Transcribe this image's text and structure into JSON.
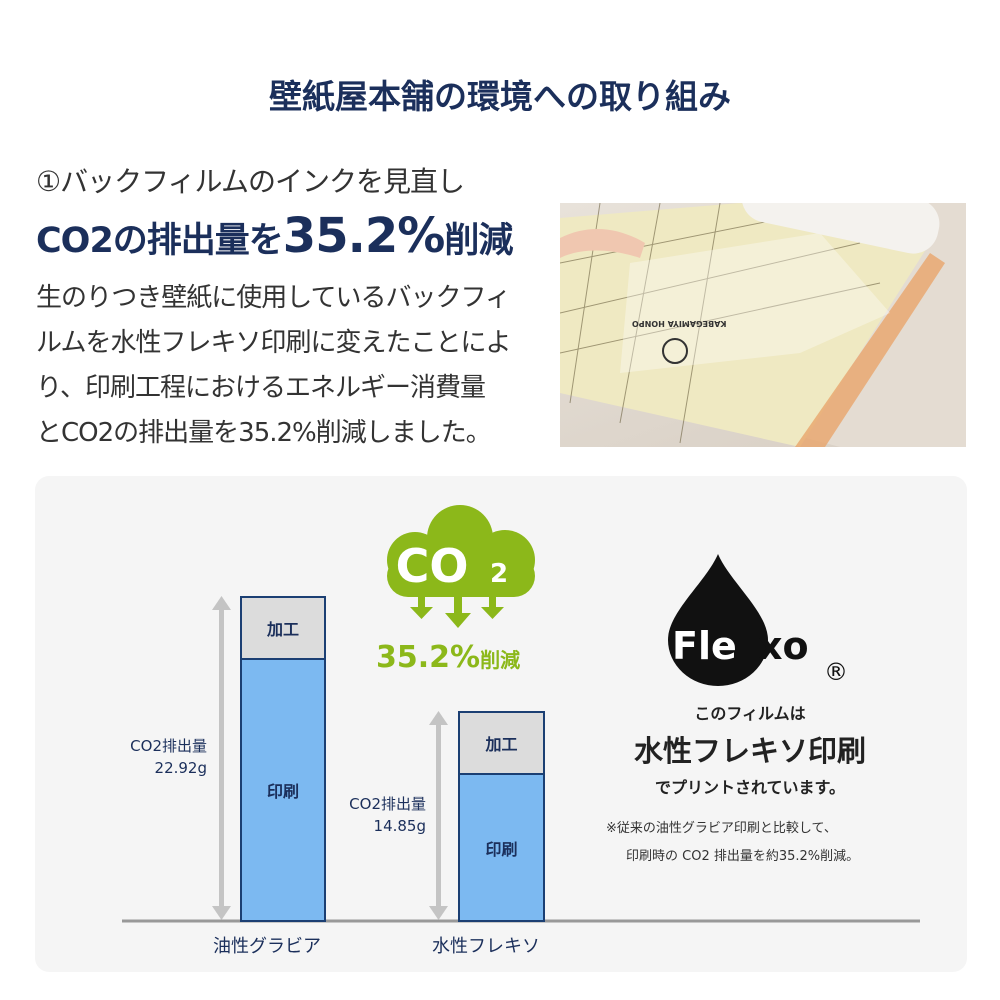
{
  "title": "壁紙屋本舗の環境への取り組み",
  "subtitle": "①バックフィルムのインクを見直し",
  "headline": {
    "pre": "CO2の排出量を",
    "highlight": "35.2%",
    "post": "削減"
  },
  "description": [
    "生のりつき壁紙に使用しているバックフィ",
    "ルムを水性フレキソ印刷に変えたことによ",
    "り、印刷工程におけるエネルギー消費量",
    "とCO2の排出量を35.2%削減しました。"
  ],
  "photo": {
    "logo_text": "KABEGAMIYA HONPO"
  },
  "badge": {
    "cloud_text": "CO",
    "cloud_sub": "2",
    "reduction": "35.2%",
    "reduction_suffix": "削減",
    "color": "#8cb81a"
  },
  "flexo": {
    "logo": "Flexo",
    "registered": "®",
    "line1": "このフィルムは",
    "line2": "水性フレキソ印刷",
    "line3": "でプリントされています。",
    "note1": "※従来の油性グラビア印刷と比較して、",
    "note2": "印刷時の CO2 排出量を約35.2%削減。"
  },
  "chart_data": {
    "type": "bar",
    "stacked": true,
    "categories": [
      "油性グラビア",
      "水性フレキソ"
    ],
    "series": [
      {
        "name": "印刷"
      },
      {
        "name": "加工"
      }
    ],
    "totals": [
      22.92,
      14.85
    ],
    "total_labels": [
      {
        "label": "CO2排出量",
        "value": "22.92g"
      },
      {
        "label": "CO2排出量",
        "value": "14.85g"
      }
    ],
    "colors": {
      "印刷": "#7cb9f1",
      "加工": "#dcdcdc"
    }
  }
}
